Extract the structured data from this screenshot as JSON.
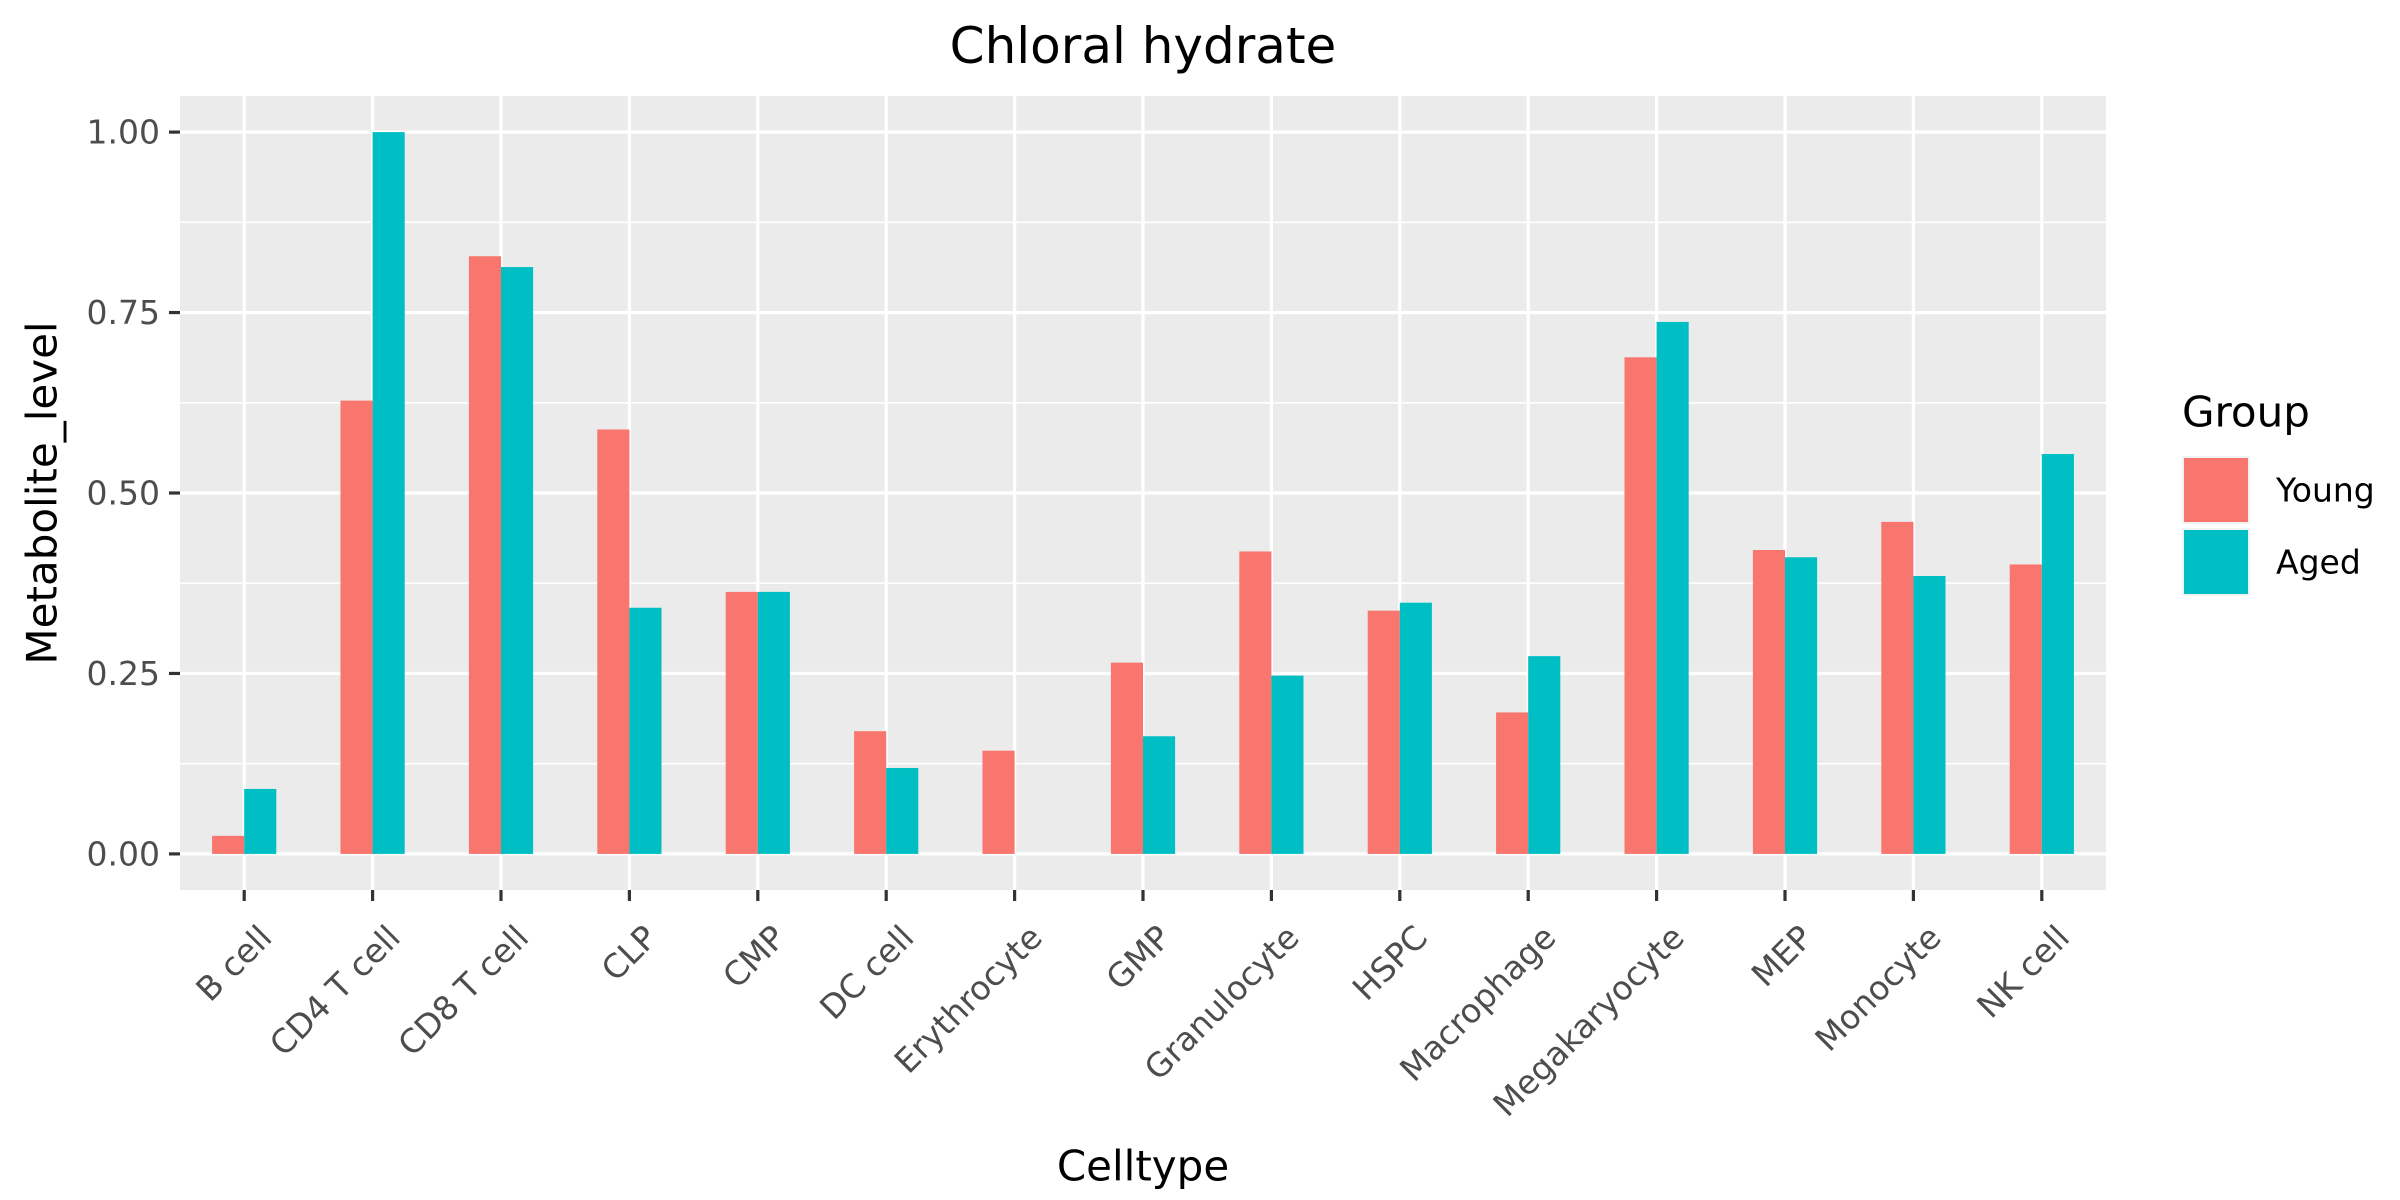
{
  "chart_data": {
    "type": "bar",
    "title": "Chloral hydrate",
    "xlabel": "Celltype",
    "ylabel": "Metabolite_level",
    "categories": [
      "B cell",
      "CD4 T cell",
      "CD8 T cell",
      "CLP",
      "CMP",
      "DC cell",
      "Erythrocyte",
      "GMP",
      "Granulocyte",
      "HSPC",
      "Macrophage",
      "Megakaryocyte",
      "MEP",
      "Monocyte",
      "NK cell"
    ],
    "series": [
      {
        "name": "Young",
        "color": "#F8766D",
        "values": [
          0.025,
          0.628,
          0.828,
          0.588,
          0.363,
          0.17,
          0.143,
          0.265,
          0.419,
          0.337,
          0.196,
          0.688,
          0.421,
          0.46,
          0.401
        ]
      },
      {
        "name": "Aged",
        "color": "#00BFC4",
        "values": [
          0.09,
          1.0,
          0.813,
          0.341,
          0.363,
          0.119,
          0.0,
          0.163,
          0.247,
          0.348,
          0.274,
          0.737,
          0.411,
          0.385,
          0.554
        ]
      }
    ],
    "ylim": [
      -0.05,
      1.05
    ],
    "yticks": [
      0.0,
      0.25,
      0.5,
      0.75,
      1.0
    ],
    "ytick_labels": [
      "0.00",
      "0.25",
      "0.50",
      "0.75",
      "1.00"
    ],
    "legend": {
      "title": "Group",
      "position": "right"
    },
    "grid": true,
    "panel_background": "#EBEBEB"
  }
}
